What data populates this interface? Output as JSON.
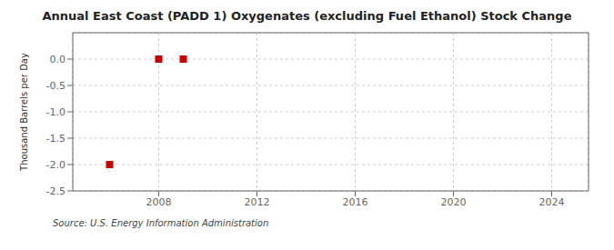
{
  "chart_data": {
    "type": "scatter",
    "title": "Annual East Coast (PADD 1) Oxygenates (excluding Fuel Ethanol) Stock Change",
    "ylabel": "Thousand Barrels per Day",
    "source": "Source: U.S. Energy Information Administration",
    "x": [
      2006,
      2008,
      2009
    ],
    "values": [
      -2.0,
      0.0,
      0.0
    ],
    "color": "#cc0000",
    "marker": "square",
    "xlim": [
      2004.5,
      2025.5
    ],
    "ylim": [
      -2.5,
      0.5
    ],
    "xticks": [
      2008,
      2012,
      2016,
      2020,
      2024
    ],
    "yticks": [
      {
        "value": 0.0,
        "label": "0.0"
      },
      -0.5,
      {
        "value": -1.0,
        "label": "-1.0"
      },
      -1.5,
      {
        "value": -2.0,
        "label": "-2.0"
      },
      -2.5
    ],
    "grid": true
  }
}
